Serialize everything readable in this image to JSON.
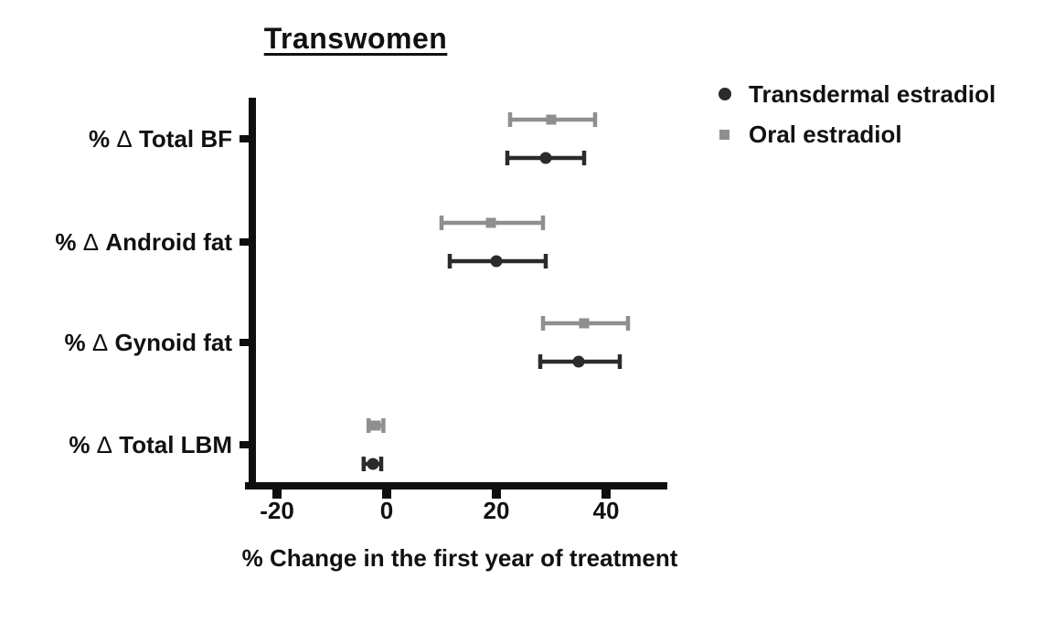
{
  "page": {
    "background": "#ffffff",
    "text_color": "#111111",
    "axis_color": "#0f0f0f"
  },
  "chart_data": {
    "type": "scatter",
    "subtype": "horizontal-forest-plot-with-error-bars",
    "title": "Transwomen",
    "xlabel": "% Change in the first year of treatment",
    "xlim": [
      -25,
      51
    ],
    "xticks": [
      -20,
      0,
      20,
      40
    ],
    "xtick_labels": [
      "-20",
      "0",
      "20",
      "40"
    ],
    "grid": false,
    "legend_position": "top-right",
    "categories": [
      "% Δ Total BF",
      "% Δ Android fat",
      "% Δ Gynoid fat",
      "% Δ Total LBM"
    ],
    "series": [
      {
        "name": "Transdermal estradiol",
        "marker": "circle",
        "color": "#2b2b2b",
        "values": [
          29,
          20,
          35,
          -2.5
        ],
        "ci_low": [
          22,
          11.5,
          28,
          -4.2
        ],
        "ci_high": [
          36,
          29,
          42.5,
          -1
        ]
      },
      {
        "name": "Oral estradiol",
        "marker": "square",
        "color": "#8f8f8f",
        "values": [
          30,
          19,
          36,
          -2
        ],
        "ci_low": [
          22.5,
          10,
          28.5,
          -3.3
        ],
        "ci_high": [
          38,
          28.5,
          44,
          -0.6
        ]
      }
    ]
  },
  "legend": {
    "items": [
      {
        "label": "Transdermal estradiol",
        "marker": "circle",
        "color": "#2b2b2b"
      },
      {
        "label": "Oral estradiol",
        "marker": "square",
        "color": "#8f8f8f"
      }
    ]
  }
}
